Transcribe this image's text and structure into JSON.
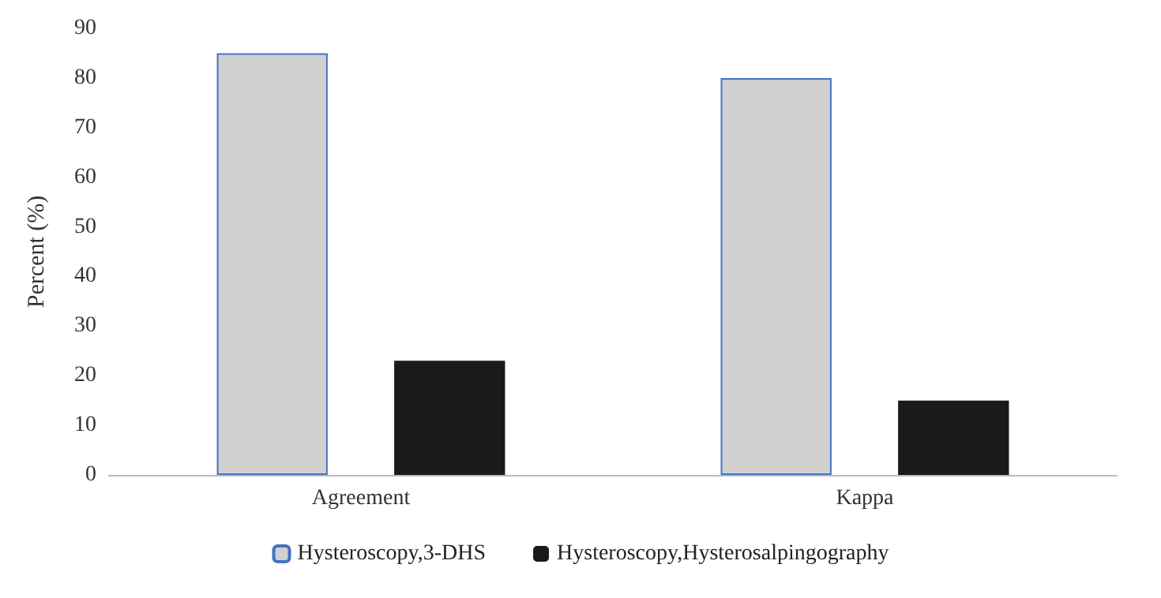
{
  "chart_data": {
    "type": "bar",
    "ylabel": "Percent (%)",
    "categories": [
      "Agreement",
      "Kappa"
    ],
    "series": [
      {
        "name": "Hysteroscopy,3-DHS",
        "color": "#d0d0d0",
        "values": [
          85,
          80
        ]
      },
      {
        "name": "Hysteroscopy,Hysterosalpingography",
        "color": "#1a1a1a",
        "values": [
          23,
          15
        ]
      }
    ],
    "ylim": [
      0,
      90
    ],
    "yticks": [
      0,
      10,
      20,
      30,
      40,
      50,
      60,
      70,
      80,
      90
    ],
    "grid": false,
    "legend": "bottom"
  }
}
